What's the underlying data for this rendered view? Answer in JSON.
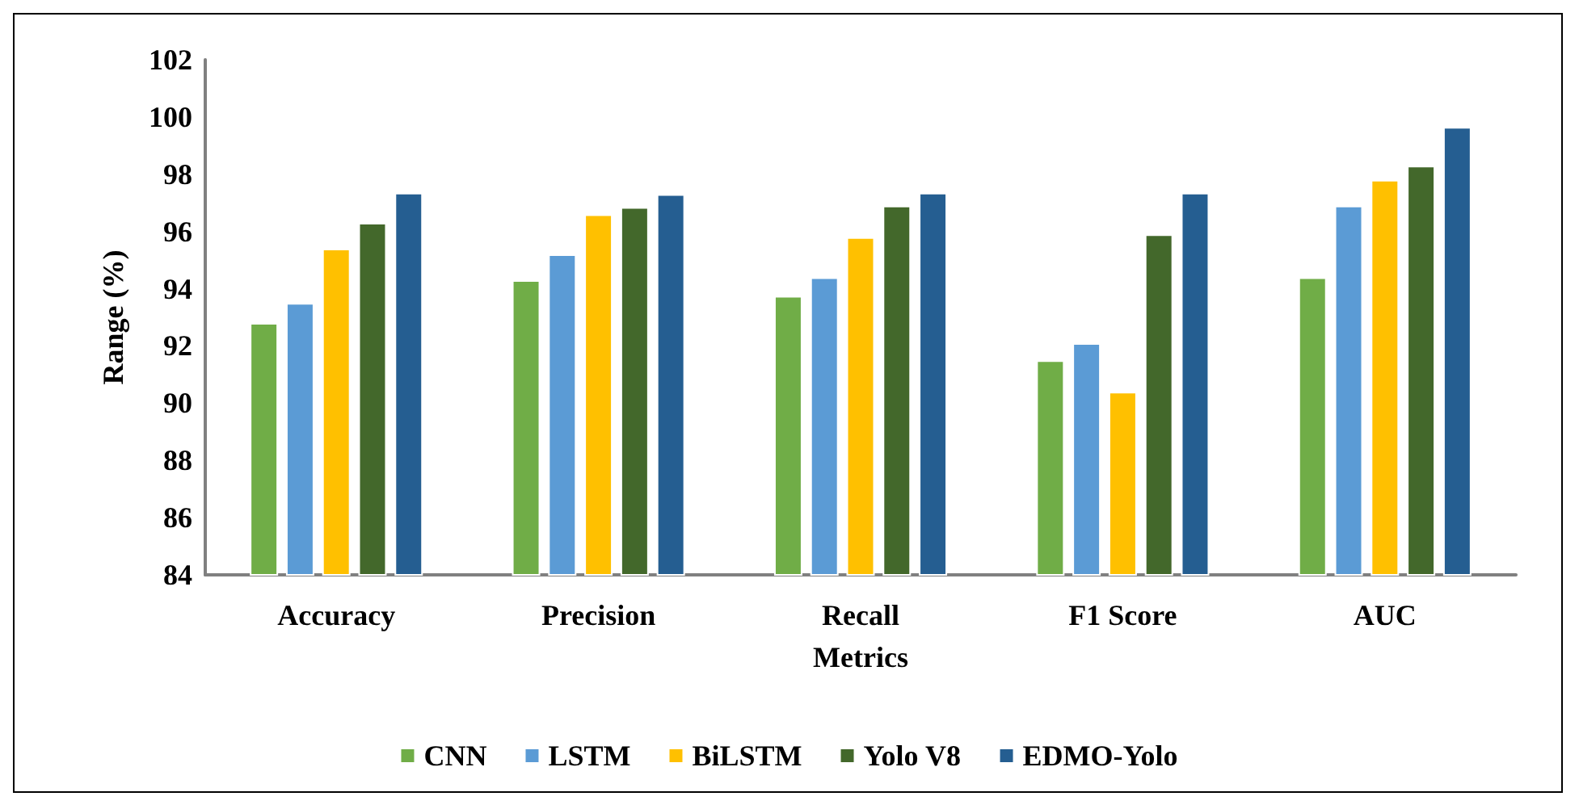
{
  "chart_data": {
    "type": "bar",
    "xlabel": "Metrics",
    "ylabel": "Range (%)",
    "categories": [
      "Accuracy",
      "Precision",
      "Recall",
      "F1 Score",
      "AUC"
    ],
    "series": [
      {
        "name": "CNN",
        "color": "#70ad47",
        "values": [
          92.8,
          94.3,
          93.75,
          91.5,
          94.4
        ]
      },
      {
        "name": "LSTM",
        "color": "#5b9bd5",
        "values": [
          93.5,
          95.2,
          94.4,
          92.1,
          96.9
        ]
      },
      {
        "name": "BiLSTM",
        "color": "#ffc000",
        "values": [
          95.4,
          96.6,
          95.8,
          90.4,
          97.8
        ]
      },
      {
        "name": "Yolo V8",
        "color": "#43682b",
        "values": [
          96.3,
          96.85,
          96.9,
          95.9,
          98.3
        ]
      },
      {
        "name": "EDMO-Yolo",
        "color": "#255e91",
        "values": [
          97.35,
          97.3,
          97.35,
          97.35,
          99.65
        ]
      }
    ],
    "ylim": [
      84,
      102
    ],
    "yticks": [
      84,
      86,
      88,
      90,
      92,
      94,
      96,
      98,
      100,
      102
    ],
    "grid": false,
    "legend": "bottom"
  }
}
